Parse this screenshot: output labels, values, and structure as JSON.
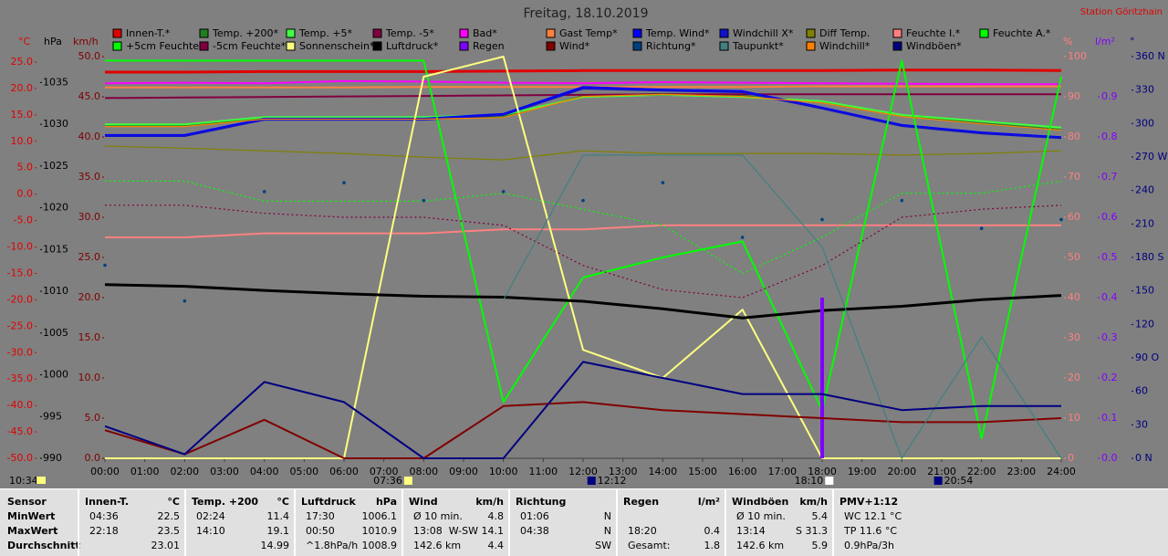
{
  "chart_data": {
    "type": "line",
    "title": "Freitag, 18.10.2019",
    "station": "Station Göritzhain",
    "day_length": "10:34",
    "x": [
      0,
      2,
      4,
      6,
      8,
      10,
      12,
      14,
      16,
      18,
      20,
      22,
      24
    ],
    "xlim": [
      0,
      24
    ],
    "xticks": [
      {
        "value": 0,
        "label": "00:00"
      },
      {
        "value": 1,
        "label": "01:00"
      },
      {
        "value": 2,
        "label": "02:00"
      },
      {
        "value": 3,
        "label": "03:00"
      },
      {
        "value": 4,
        "label": "04:00"
      },
      {
        "value": 5,
        "label": "05:00"
      },
      {
        "value": 6,
        "label": "06:00"
      },
      {
        "value": 7,
        "label": "07:00"
      },
      {
        "value": 8,
        "label": "08:00"
      },
      {
        "value": 9,
        "label": "09:00"
      },
      {
        "value": 10,
        "label": "10:00"
      },
      {
        "value": 11,
        "label": "11:00"
      },
      {
        "value": 12,
        "label": "12:00"
      },
      {
        "value": 13,
        "label": "13:00"
      },
      {
        "value": 14,
        "label": "14:00"
      },
      {
        "value": 15,
        "label": "15:00"
      },
      {
        "value": 16,
        "label": "16:00"
      },
      {
        "value": 17,
        "label": "17:00"
      },
      {
        "value": 18,
        "label": "18:00"
      },
      {
        "value": 19,
        "label": "19:00"
      },
      {
        "value": 20,
        "label": "20:00"
      },
      {
        "value": 21,
        "label": "21:00"
      },
      {
        "value": 22,
        "label": "22:00"
      },
      {
        "value": 23,
        "label": "23:00"
      },
      {
        "value": 24,
        "label": "24:00"
      }
    ],
    "axes": [
      {
        "unit": "°C",
        "color": "#e00000",
        "lim": [
          -50,
          26.04
        ],
        "ticks": [
          {
            "value": 25,
            "label": "25.0"
          },
          {
            "value": 20,
            "label": "20.0"
          },
          {
            "value": 15,
            "label": "15.0"
          },
          {
            "value": 10,
            "label": "10.0"
          },
          {
            "value": 5,
            "label": "5.0"
          },
          {
            "value": 0,
            "label": "0.0"
          },
          {
            "value": -5,
            "label": "-5.0"
          },
          {
            "value": -10,
            "label": "-10.0"
          },
          {
            "value": -15,
            "label": "-15.0"
          },
          {
            "value": -20,
            "label": "-20.0"
          },
          {
            "value": -25,
            "label": "-25.0"
          },
          {
            "value": -30,
            "label": "-30.0"
          },
          {
            "value": -35,
            "label": "-35.0"
          },
          {
            "value": -40,
            "label": "-40.0"
          },
          {
            "value": -45,
            "label": "-45.0"
          },
          {
            "value": -50,
            "label": "-50.0"
          }
        ]
      },
      {
        "unit": "hPa",
        "color": "#000000",
        "lim": [
          990,
          1038.1
        ],
        "ticks": [
          1035,
          1030,
          1025,
          1020,
          1015,
          1010,
          1005,
          1000,
          995,
          990
        ]
      },
      {
        "unit": "km/h",
        "color": "#800000",
        "lim": [
          0,
          50
        ],
        "ticks": [
          {
            "value": 50,
            "label": "50.0"
          },
          {
            "value": 45,
            "label": "45.0"
          },
          {
            "value": 40,
            "label": "40.0"
          },
          {
            "value": 35,
            "label": "35.0"
          },
          {
            "value": 30,
            "label": "30.0"
          },
          {
            "value": 25,
            "label": "25.0"
          },
          {
            "value": 20,
            "label": "20.0"
          },
          {
            "value": 15,
            "label": "15.0"
          },
          {
            "value": 10,
            "label": "10.0"
          },
          {
            "value": 5,
            "label": "5.0"
          },
          {
            "value": 0,
            "label": "0.0"
          }
        ]
      },
      {
        "unit": "%",
        "color": "#ff8080",
        "lim": [
          0,
          100
        ],
        "ticks": [
          100,
          90,
          80,
          70,
          60,
          50,
          40,
          30,
          20,
          10,
          0
        ]
      },
      {
        "unit": "l/m²",
        "color": "#8000ff",
        "lim": [
          0,
          1
        ],
        "ticks": [
          {
            "value": 0.9,
            "label": "0.9"
          },
          {
            "value": 0.8,
            "label": "0.8"
          },
          {
            "value": 0.7,
            "label": "0.7"
          },
          {
            "value": 0.6,
            "label": "0.6"
          },
          {
            "value": 0.5,
            "label": "0.5"
          },
          {
            "value": 0.4,
            "label": "0.4"
          },
          {
            "value": 0.3,
            "label": "0.3"
          },
          {
            "value": 0.2,
            "label": "0.2"
          },
          {
            "value": 0.1,
            "label": "0.1"
          },
          {
            "value": 0,
            "label": "0.0"
          }
        ]
      },
      {
        "unit": "°",
        "color": "#000080",
        "lim": [
          0,
          360
        ],
        "ticks": [
          {
            "value": 360,
            "label": "360 N"
          },
          {
            "value": 330,
            "label": "330"
          },
          {
            "value": 300,
            "label": "300"
          },
          {
            "value": 270,
            "label": "270 W"
          },
          {
            "value": 240,
            "label": "240"
          },
          {
            "value": 210,
            "label": "210"
          },
          {
            "value": 180,
            "label": "180 S"
          },
          {
            "value": 150,
            "label": "150"
          },
          {
            "value": 120,
            "label": "120"
          },
          {
            "value": 90,
            "label": "90 O"
          },
          {
            "value": 60,
            "label": "60"
          },
          {
            "value": 30,
            "label": "30"
          },
          {
            "value": 0,
            "label": "0 N"
          }
        ]
      }
    ],
    "series": [
      {
        "name": "Innen-T.*",
        "color": "#e00000",
        "axis": 0,
        "style": "thick",
        "values": [
          23.1,
          23.1,
          23.2,
          23.2,
          23.2,
          23.3,
          23.4,
          23.4,
          23.4,
          23.4,
          23.5,
          23.5,
          23.4
        ]
      },
      {
        "name": "Temp. +200*",
        "color": "#208020",
        "axis": 0,
        "style": "line",
        "values": [
          12.9,
          12.9,
          14.3,
          14.3,
          14.3,
          14.6,
          18.6,
          19.0,
          18.6,
          17.4,
          14.8,
          13.4,
          12.2
        ]
      },
      {
        "name": "Temp. +5*",
        "color": "#40ff40",
        "axis": 0,
        "style": "line",
        "values": [
          13.2,
          13.2,
          14.6,
          14.6,
          14.6,
          15.0,
          18.4,
          18.8,
          18.4,
          17.6,
          15.0,
          13.8,
          12.6
        ]
      },
      {
        "name": "Temp. -5*",
        "color": "#800040",
        "axis": 0,
        "style": "line",
        "values": [
          18.2,
          18.3,
          18.4,
          18.5,
          18.6,
          18.7,
          18.8,
          18.9,
          18.9,
          18.9,
          18.9,
          18.9,
          18.9
        ]
      },
      {
        "name": "Bad*",
        "color": "#ff00ff",
        "axis": 0,
        "style": "line",
        "values": [
          21.0,
          21.1,
          21.0,
          21.4,
          21.3,
          21.1,
          21.0,
          21.2,
          21.1,
          21.0,
          20.9,
          20.8,
          20.8
        ]
      },
      {
        "name": "Gast Temp*",
        "color": "#ff8040",
        "axis": 0,
        "style": "line",
        "values": [
          20.2,
          20.2,
          20.2,
          20.2,
          20.3,
          20.3,
          20.3,
          20.3,
          20.3,
          20.4,
          20.4,
          20.4,
          20.4
        ]
      },
      {
        "name": "Temp. Wind*",
        "color": "#0000ff",
        "axis": 0,
        "style": "line",
        "values": [
          11.2,
          11.2,
          14.3,
          14.3,
          14.3,
          15.2,
          20.3,
          19.8,
          19.5,
          16.4,
          13.1,
          11.7,
          10.8
        ]
      },
      {
        "name": "Windchill X*",
        "color": "#1010d0",
        "axis": 0,
        "style": "line",
        "values": [
          11.0,
          11.0,
          14.1,
          14.1,
          14.1,
          15.0,
          20.0,
          19.6,
          19.3,
          16.2,
          12.9,
          11.5,
          10.6
        ]
      },
      {
        "name": "Diff Temp.",
        "color": "#808000",
        "axis": 0,
        "style": "thin",
        "values": [
          9.1,
          8.7,
          8.2,
          7.7,
          7.0,
          6.5,
          8.2,
          7.7,
          7.7,
          7.7,
          7.4,
          7.7,
          8.2
        ]
      },
      {
        "name": "Feuchte I.*",
        "color": "#ff8080",
        "axis": 3,
        "style": "line",
        "values": [
          55,
          55,
          56,
          56,
          56,
          57,
          57,
          58,
          58,
          58,
          58,
          58,
          58
        ]
      },
      {
        "name": "Feuchte A.*",
        "color": "#00ff00",
        "axis": 3,
        "style": "line",
        "values": [
          99,
          99,
          99,
          99,
          99,
          14,
          45,
          50,
          54,
          12,
          99,
          5,
          95
        ]
      },
      {
        "name": "+5cm Feuchte*",
        "color": "#00ff00",
        "axis": 3,
        "style": "dotted",
        "values": [
          69,
          69,
          64,
          64,
          64,
          66,
          62,
          58,
          46,
          55,
          66,
          66,
          69
        ]
      },
      {
        "name": "-5cm Feuchte*",
        "color": "#800040",
        "axis": 3,
        "style": "dotted",
        "values": [
          63,
          63,
          61,
          60,
          60,
          58,
          48,
          42,
          40,
          48,
          60,
          62,
          63
        ]
      },
      {
        "name": "Sonnenschein*",
        "color": "#ffff80",
        "axis": 3,
        "style": "line",
        "values": [
          0,
          0,
          0,
          0,
          95,
          100,
          27,
          20,
          37,
          0,
          0,
          0,
          0
        ]
      },
      {
        "name": "Luftdruck*",
        "color": "#000000",
        "axis": 1,
        "style": "thick",
        "values": [
          1010.8,
          1010.6,
          1010.1,
          1009.7,
          1009.4,
          1009.3,
          1008.8,
          1007.9,
          1006.8,
          1007.7,
          1008.2,
          1009.0,
          1009.5
        ]
      },
      {
        "name": "Regen",
        "color": "#8000ff",
        "axis": 4,
        "style": "bars",
        "values": [
          0,
          0,
          0,
          0,
          0,
          0,
          0,
          0,
          0,
          0.4,
          0,
          0,
          0
        ]
      },
      {
        "name": "Wind*",
        "color": "#800000",
        "axis": 2,
        "style": "line",
        "values": [
          3.5,
          0.5,
          4.8,
          0,
          0,
          6.5,
          7.0,
          6.0,
          5.5,
          5.0,
          4.5,
          4.5,
          5.0
        ]
      },
      {
        "name": "Richtung*",
        "color": "#004080",
        "axis": 5,
        "style": "dots",
        "values": [
          173,
          141,
          239,
          247,
          231,
          239,
          231,
          247,
          198,
          214,
          231,
          206,
          214
        ]
      },
      {
        "name": "Taupunkt*",
        "color": "#408080",
        "axis": 0,
        "style": "thin",
        "values": [
          null,
          null,
          null,
          null,
          null,
          -20,
          7.4,
          7.4,
          7.4,
          -10,
          -50,
          -27,
          -50
        ]
      },
      {
        "name": "Windchill*",
        "color": "#ff8000",
        "axis": 0,
        "style": "thin",
        "values": [
          12.8,
          12.8,
          14.2,
          14.2,
          14.2,
          14.5,
          18.5,
          18.9,
          18.5,
          17.3,
          14.7,
          13.3,
          12.1
        ]
      },
      {
        "name": "Windböen*",
        "color": "#000080",
        "axis": 2,
        "style": "line",
        "values": [
          4.0,
          0.5,
          9.5,
          7.0,
          0,
          0,
          12.0,
          10.0,
          8.0,
          8.0,
          6.0,
          6.5,
          6.5
        ]
      }
    ],
    "markers": [
      {
        "value": 7.6,
        "label": "07:36",
        "color": "#ffff80",
        "text_side": "left"
      },
      {
        "value": 12.2,
        "label": "12:12",
        "color": "#000080",
        "text_side": "right"
      },
      {
        "value": 18.167,
        "label": "18:10",
        "color": "#ffffff",
        "text_side": "left"
      },
      {
        "value": 20.9,
        "label": "20:54",
        "color": "#000080",
        "text_side": "right"
      }
    ]
  },
  "table": {
    "row_labels": [
      "Sensor",
      "MinWert",
      "MaxWert",
      "Durchschnitt"
    ],
    "columns": [
      {
        "title": "Innen-T.",
        "unit": "°C",
        "rows": [
          [
            "04:36",
            "22.5"
          ],
          [
            "22:18",
            "23.5"
          ],
          [
            null,
            "23.01"
          ]
        ]
      },
      {
        "title": "Temp. +200",
        "unit": "°C",
        "rows": [
          [
            "02:24",
            "11.4"
          ],
          [
            "14:10",
            "19.1"
          ],
          [
            null,
            "14.99"
          ]
        ]
      },
      {
        "title": "Luftdruck",
        "unit": "hPa",
        "rows": [
          [
            "17:30",
            "1006.1"
          ],
          [
            "00:50",
            "1010.9"
          ],
          [
            "^1.8hPa/h",
            "1008.9"
          ]
        ]
      },
      {
        "title": "Wind",
        "unit": "km/h",
        "rows": [
          [
            "Ø 10 min.",
            "4.8"
          ],
          [
            "13:08",
            "W-SW 14.1"
          ],
          [
            "142.6 km",
            "4.4"
          ]
        ]
      },
      {
        "title": "Richtung",
        "unit": null,
        "rows": [
          [
            "01:06",
            "N"
          ],
          [
            "04:38",
            "N"
          ],
          [
            null,
            "SW"
          ]
        ]
      },
      {
        "title": "Regen",
        "unit": "l/m²",
        "rows": [
          [
            null,
            null
          ],
          [
            "18:20",
            "0.4"
          ],
          [
            "Gesamt:",
            "1.8"
          ]
        ]
      },
      {
        "title": "Windböen",
        "unit": "km/h",
        "rows": [
          [
            "Ø 10 min.",
            "5.4"
          ],
          [
            "13:14",
            "S 31.3"
          ],
          [
            "142.6 km",
            "5.9"
          ]
        ]
      },
      {
        "title": "PMV+1:12",
        "unit": null,
        "rows": [
          [
            "WC 12.1 °C",
            null
          ],
          [
            "TP 11.6 °C",
            null
          ],
          [
            "0.9hPa/3h",
            null
          ]
        ]
      }
    ]
  }
}
